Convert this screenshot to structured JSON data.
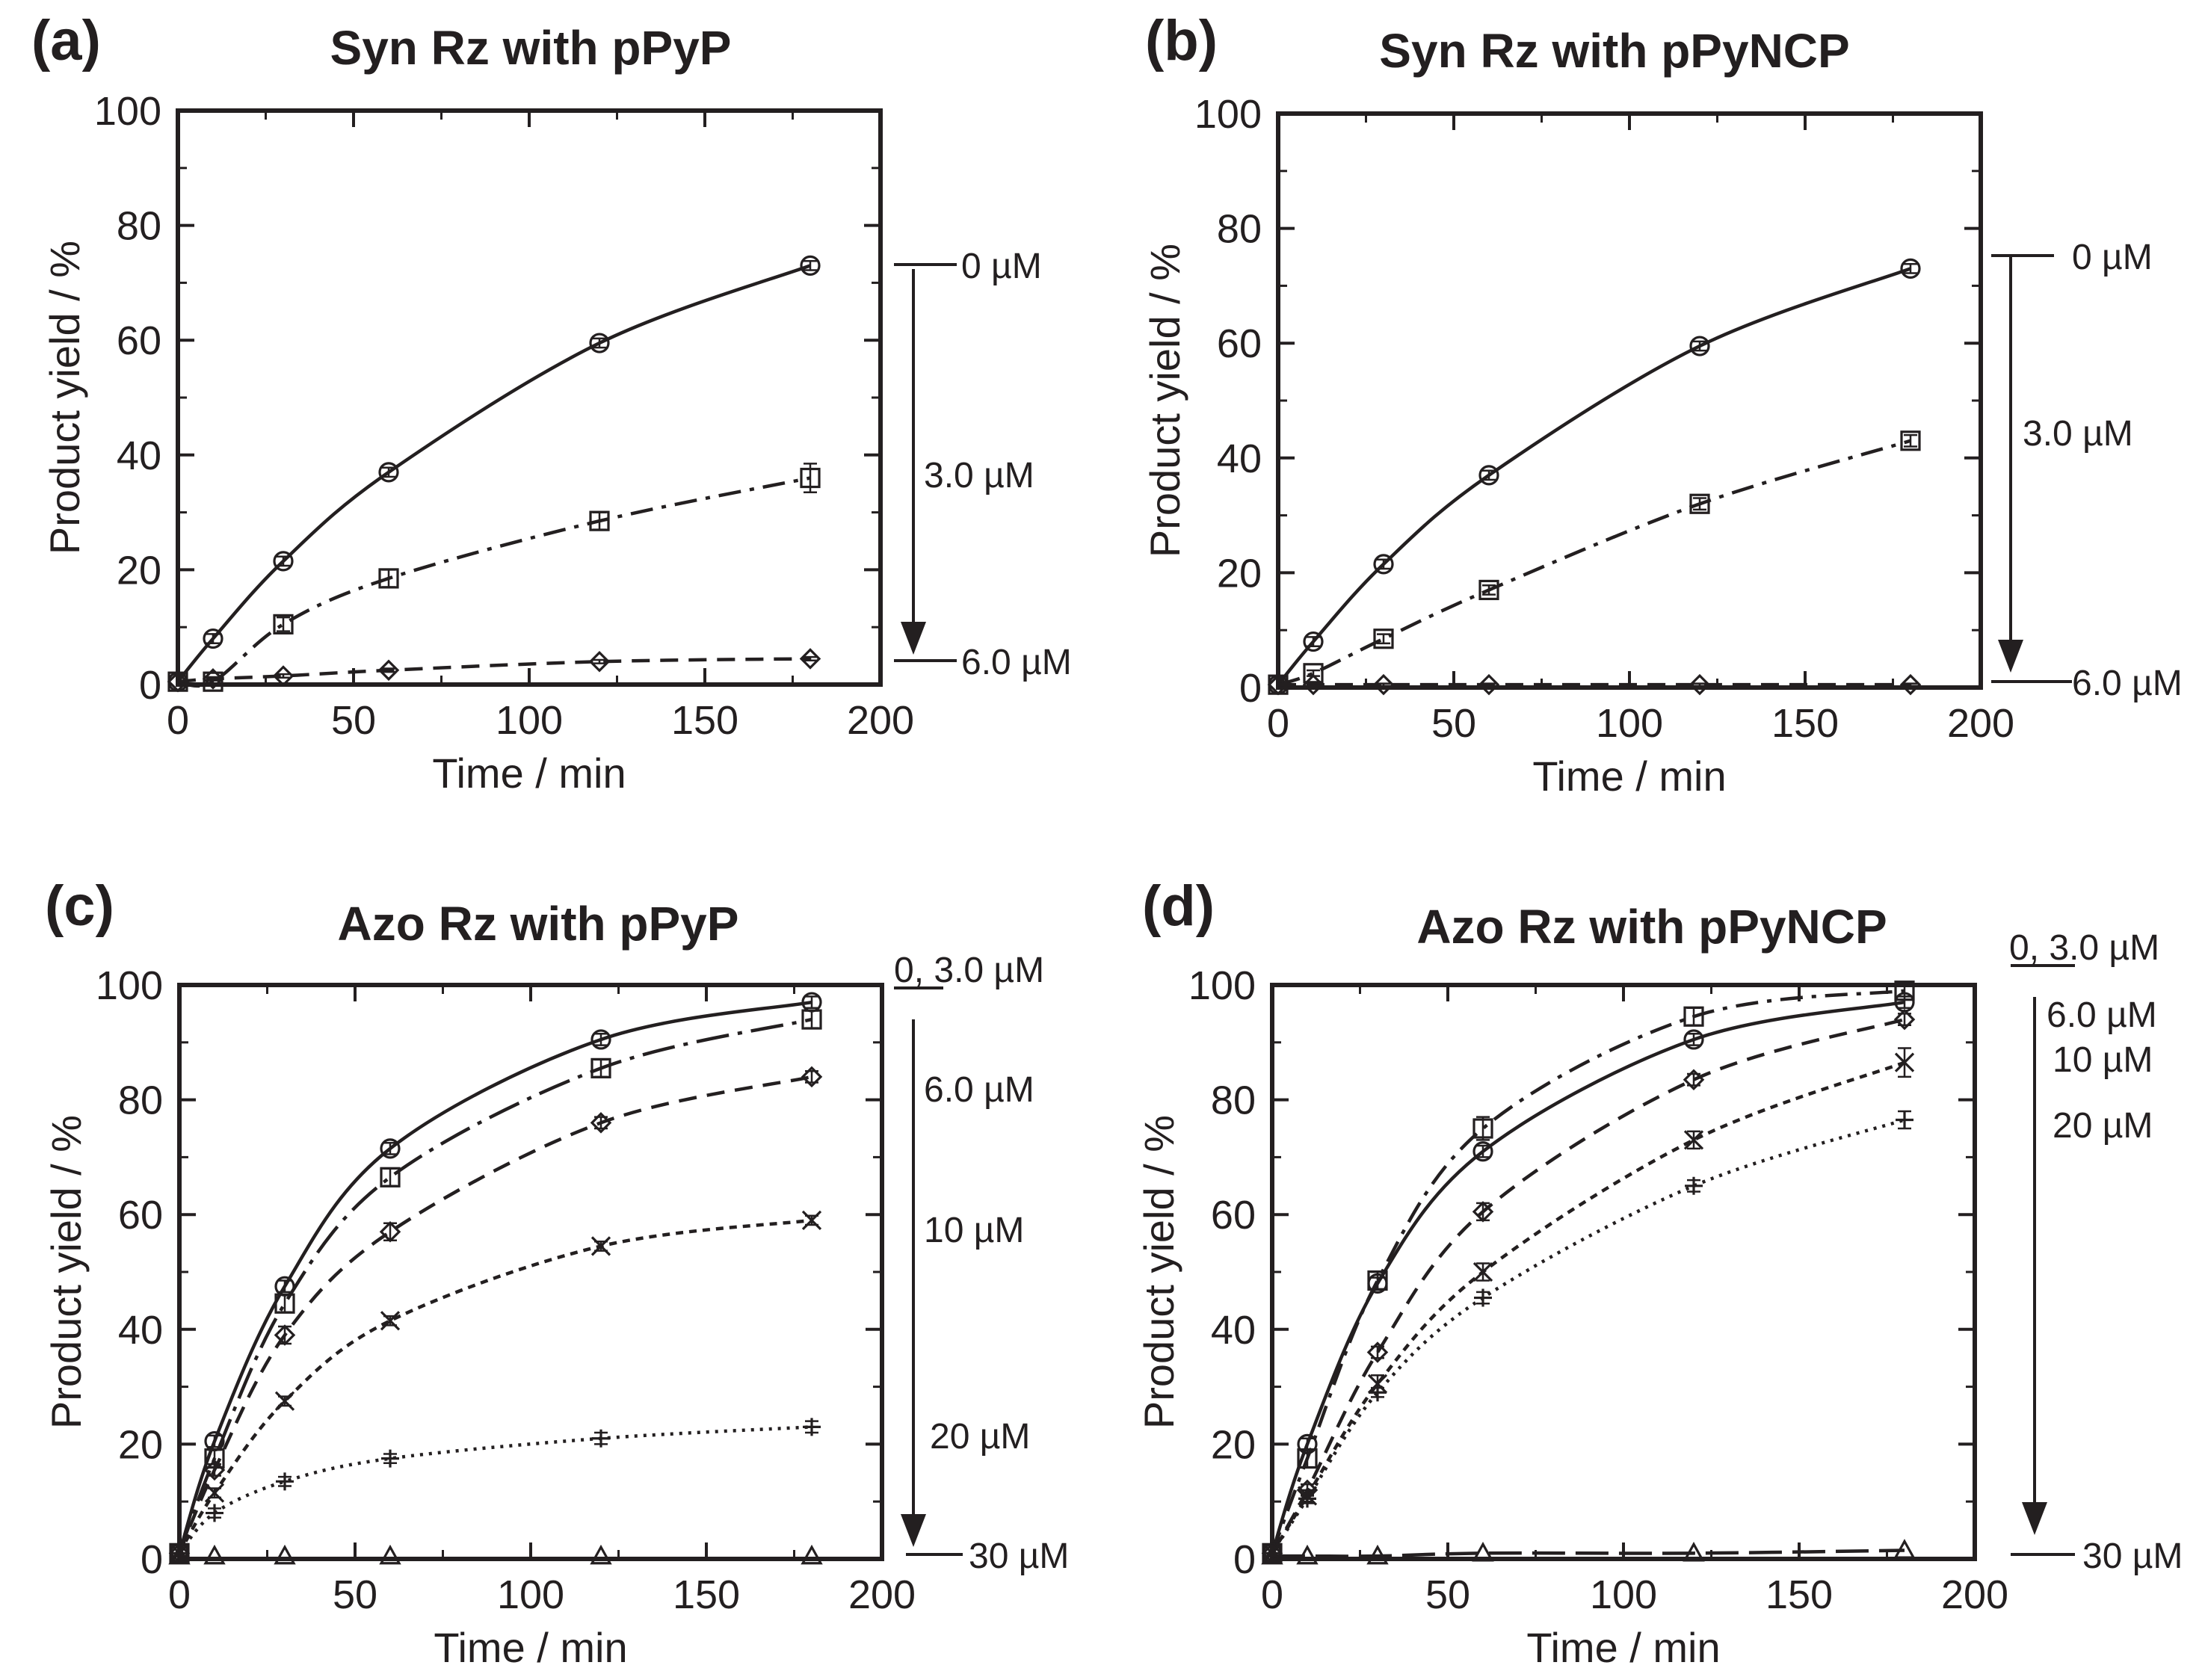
{
  "figure": {
    "xlabel": "Time / min",
    "ylabel": "Product yield / %",
    "xticks": [
      "0",
      "50",
      "100",
      "150",
      "200"
    ],
    "yticks": [
      "0",
      "20",
      "40",
      "60",
      "80",
      "100"
    ],
    "line_color": "#231f20"
  },
  "chart_data": [
    {
      "type": "line",
      "panel_label": "(a)",
      "title": "Syn Rz with pPyP",
      "xlabel": "Time / min",
      "ylabel": "Product yield / %",
      "xlim": [
        0,
        200
      ],
      "ylim": [
        0,
        100
      ],
      "x": [
        0,
        10,
        30,
        60,
        120,
        180
      ],
      "series": [
        {
          "name": "0 µM",
          "marker": "circle",
          "style": "solid",
          "values": [
            0.5,
            8,
            21.5,
            37,
            59.5,
            73
          ],
          "errors": [
            0,
            0.8,
            0.8,
            0.8,
            0.8,
            0.8
          ]
        },
        {
          "name": "3.0 µM",
          "marker": "square",
          "style": "dashdot",
          "values": [
            0.5,
            0.5,
            10.5,
            18.5,
            28.5,
            36
          ],
          "errors": [
            0,
            0.5,
            1.2,
            1.5,
            1.5,
            2.5
          ]
        },
        {
          "name": "6.0 µM",
          "marker": "diamond",
          "style": "dashed",
          "values": [
            0.5,
            1,
            1.5,
            2.5,
            4,
            4.5
          ],
          "errors": [
            0,
            0.3,
            0.3,
            0.3,
            0.3,
            0.3
          ]
        }
      ],
      "concentration_labels": [
        "0 µM",
        "3.0 µM",
        "6.0 µM"
      ]
    },
    {
      "type": "line",
      "panel_label": "(b)",
      "title": "Syn Rz with pPyNCP",
      "xlabel": "Time / min",
      "ylabel": "Product yield / %",
      "xlim": [
        0,
        200
      ],
      "ylim": [
        0,
        100
      ],
      "x": [
        0,
        10,
        30,
        60,
        120,
        180
      ],
      "series": [
        {
          "name": "0 µM",
          "marker": "circle",
          "style": "solid",
          "values": [
            0.5,
            8,
            21.5,
            37,
            59.5,
            73
          ],
          "errors": [
            0,
            0.8,
            0.8,
            0.8,
            0.8,
            0.8
          ]
        },
        {
          "name": "3.0 µM",
          "marker": "square",
          "style": "dashdot",
          "values": [
            0.5,
            2.5,
            8.5,
            17,
            32,
            43
          ],
          "errors": [
            0,
            0.5,
            0.8,
            0.8,
            1,
            1
          ]
        },
        {
          "name": "6.0 µM",
          "marker": "diamond",
          "style": "dashed",
          "values": [
            0.5,
            0.5,
            0.5,
            0.5,
            0.5,
            0.5
          ],
          "errors": [
            0,
            0.2,
            0.2,
            0.2,
            0.2,
            0.2
          ]
        }
      ],
      "concentration_labels": [
        "0 µM",
        "3.0 µM",
        "6.0 µM"
      ]
    },
    {
      "type": "line",
      "panel_label": "(c)",
      "title": "Azo Rz with pPyP",
      "xlabel": "Time / min",
      "ylabel": "Product yield / %",
      "xlim": [
        0,
        200
      ],
      "ylim": [
        0,
        100
      ],
      "x": [
        0,
        10,
        30,
        60,
        120,
        180
      ],
      "series": [
        {
          "name": "0 µM",
          "marker": "circle",
          "style": "solid",
          "values": [
            1,
            20.5,
            47.5,
            71.5,
            90.5,
            97
          ],
          "errors": [
            0,
            1,
            1,
            1,
            1,
            1
          ]
        },
        {
          "name": "3.0 µM",
          "marker": "square",
          "style": "longdashdot",
          "values": [
            1,
            17.5,
            44.5,
            66.5,
            85.5,
            94
          ],
          "errors": [
            0,
            1.5,
            1.5,
            1.5,
            1.5,
            1.5
          ]
        },
        {
          "name": "6.0 µM",
          "marker": "diamond",
          "style": "dashed",
          "values": [
            1,
            15.5,
            39,
            57,
            76,
            84
          ],
          "errors": [
            0,
            1,
            1.5,
            1.5,
            1,
            1
          ]
        },
        {
          "name": "10 µM",
          "marker": "x",
          "style": "dotted",
          "values": [
            1,
            11.5,
            27.5,
            41.5,
            54.5,
            59
          ],
          "errors": [
            0,
            0.8,
            0.8,
            0.8,
            0.8,
            0.8
          ]
        },
        {
          "name": "20 µM",
          "marker": "plus",
          "style": "finedotted",
          "values": [
            1,
            8,
            13.5,
            17.5,
            21,
            23
          ],
          "errors": [
            0,
            0.8,
            0.8,
            0.8,
            1,
            1
          ]
        },
        {
          "name": "30 µM",
          "marker": "triangle",
          "style": "none",
          "values": [
            0.5,
            0.5,
            0.5,
            0.5,
            0.5,
            0.5
          ],
          "errors": [
            0,
            0,
            0,
            0,
            0,
            0
          ]
        }
      ],
      "concentration_labels": [
        "0, 3.0 µM",
        "6.0 µM",
        "10 µM",
        "20 µM",
        "30 µM"
      ]
    },
    {
      "type": "line",
      "panel_label": "(d)",
      "title": "Azo Rz with pPyNCP",
      "xlabel": "Time / min",
      "ylabel": "Product yield / %",
      "xlim": [
        0,
        200
      ],
      "ylim": [
        0,
        100
      ],
      "x": [
        0,
        10,
        30,
        60,
        120,
        180
      ],
      "series": [
        {
          "name": "0 µM",
          "marker": "circle",
          "style": "solid",
          "values": [
            1,
            20,
            48,
            71,
            90.5,
            97
          ],
          "errors": [
            0,
            1,
            1,
            1,
            1,
            1
          ]
        },
        {
          "name": "3.0 µM",
          "marker": "square",
          "style": "dashdot",
          "values": [
            1,
            17.5,
            48.5,
            75,
            94.5,
            99
          ],
          "errors": [
            0,
            1.5,
            1.5,
            2,
            1.5,
            1
          ]
        },
        {
          "name": "6.0 µM",
          "marker": "diamond",
          "style": "dashed",
          "values": [
            1,
            12,
            36,
            60.5,
            83.5,
            94
          ],
          "errors": [
            0,
            1,
            1,
            1.5,
            1,
            1
          ]
        },
        {
          "name": "10 µM",
          "marker": "x",
          "style": "dotted",
          "values": [
            1,
            11,
            30.5,
            50,
            73,
            86.5
          ],
          "errors": [
            0,
            1,
            1.5,
            1.5,
            1.5,
            2.5
          ]
        },
        {
          "name": "20 µM",
          "marker": "plus",
          "style": "finedotted",
          "values": [
            1,
            10.5,
            29,
            45.5,
            65,
            76.5
          ],
          "errors": [
            0,
            0.8,
            0.8,
            1,
            1,
            1.5
          ]
        },
        {
          "name": "30 µM",
          "marker": "triangle",
          "style": "longdash",
          "values": [
            0.5,
            0.5,
            0.5,
            1,
            1,
            1.5
          ],
          "errors": [
            0,
            0,
            0,
            0,
            0,
            0
          ]
        }
      ],
      "concentration_labels": [
        "0, 3.0 µM",
        "6.0 µM",
        "10 µM",
        "20 µM",
        "30 µM"
      ]
    }
  ]
}
